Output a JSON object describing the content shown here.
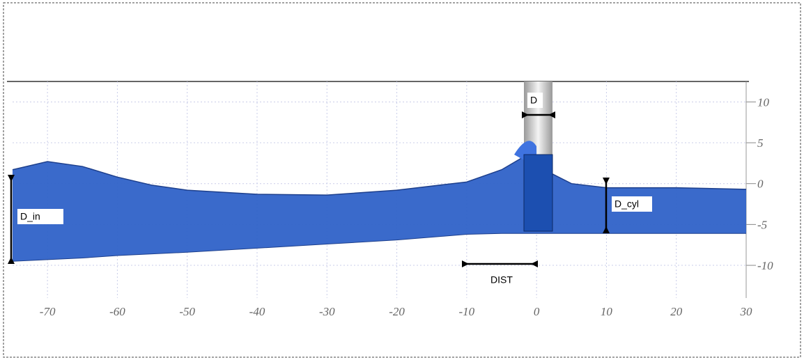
{
  "chart_data": {
    "type": "area",
    "x": [
      -75,
      -70,
      -65,
      -60,
      -55,
      -50,
      -40,
      -30,
      -20,
      -10,
      -5,
      -2,
      2,
      5,
      10,
      20,
      30
    ],
    "values": [
      1.7,
      2.7,
      2.1,
      0.8,
      -0.2,
      -0.8,
      -1.3,
      -1.4,
      -0.8,
      0.2,
      1.7,
      3.2,
      1.3,
      0,
      -0.5,
      -0.5,
      -0.7
    ],
    "bed": [
      -9.5,
      -9.3,
      -9.1,
      -8.8,
      -8.6,
      -8.4,
      -7.9,
      -7.4,
      -6.9,
      -6.2,
      -6.1,
      -6.1,
      -6.1,
      -6.1,
      -6.1,
      -6.1,
      -6.1
    ],
    "color": "#2f62c8",
    "xlim": [
      -75,
      30
    ],
    "ylim": [
      -14,
      12.5
    ],
    "xticks": [
      -70,
      -60,
      -50,
      -40,
      -30,
      -20,
      -10,
      0,
      10,
      20,
      30
    ],
    "yticks": [
      10,
      5,
      0,
      -5,
      -10
    ],
    "grid": true,
    "annotations": [
      "D",
      "D_in",
      "D_cyl",
      "DIST"
    ]
  }
}
